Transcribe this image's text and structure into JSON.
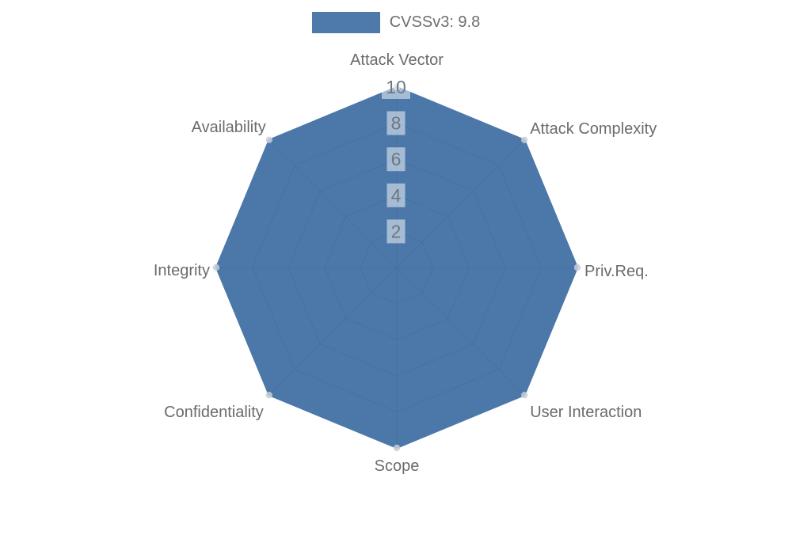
{
  "chart_data": {
    "type": "radar",
    "title": "",
    "categories": [
      "Attack Vector",
      "Attack Complexity",
      "Priv.Req.",
      "User Interaction",
      "Scope",
      "Confidentiality",
      "Integrity",
      "Availability"
    ],
    "series": [
      {
        "name": "CVSSv3: 9.8",
        "values": [
          10,
          10,
          10,
          10,
          10,
          10,
          10,
          10
        ]
      }
    ],
    "ticks": [
      2,
      4,
      6,
      8,
      10
    ],
    "rmin": 0,
    "rmax": 10,
    "grid": true,
    "legend_position": "top",
    "colors": {
      "fill_base": "#3969a0",
      "fill_opacity": 0.9,
      "stroke": "#4b77a9",
      "legend_swatch": "#4d79ab",
      "grid_line": "#6e6e6e",
      "grid_opacity": 0.5,
      "axis_label": "#6b6b6b",
      "tick_label": "#6d7780",
      "tick_backdrop": "rgba(255,255,255,0.5)",
      "marker": "#c8ced6"
    }
  },
  "legend": {
    "label": "CVSSv3: 9.8"
  }
}
